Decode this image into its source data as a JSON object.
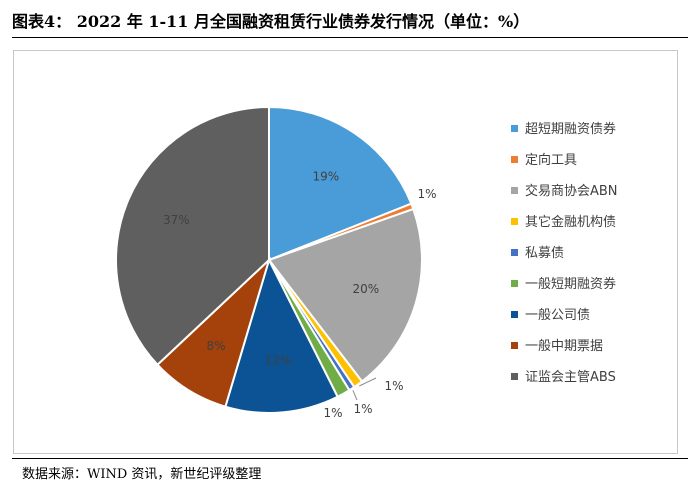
{
  "header": {
    "title": "图表4： 2022 年 1-11 月全国融资租赁行业债券发行情况（单位：%）"
  },
  "footer": {
    "source": "数据来源：WIND 资讯，新世纪评级整理"
  },
  "chart_data": {
    "type": "pie",
    "title": "",
    "unit": "%",
    "legend_position": "right",
    "slices": [
      {
        "name": "超短期融资债券",
        "value": 19,
        "label": "19%",
        "color": "#4A9CD8",
        "label_mode": "inside"
      },
      {
        "name": "定向工具",
        "value": 0.6,
        "label": "1%",
        "color": "#ED7D31",
        "label_mode": "outside"
      },
      {
        "name": "交易商协会ABN",
        "value": 20,
        "label": "20%",
        "color": "#A5A5A5",
        "label_mode": "inside"
      },
      {
        "name": "其它金融机构债",
        "value": 1,
        "label": "1%",
        "color": "#FFC000",
        "label_mode": "leader"
      },
      {
        "name": "私募债",
        "value": 0.6,
        "label": "1%",
        "color": "#4472C4",
        "label_mode": "leader"
      },
      {
        "name": "一般短期融资券",
        "value": 1.4,
        "label": "1%",
        "color": "#70AD47",
        "label_mode": "outside"
      },
      {
        "name": "一般公司债",
        "value": 12,
        "label": "12%",
        "color": "#0B5394",
        "label_mode": "inside"
      },
      {
        "name": "一般中期票据",
        "value": 8.4,
        "label": "8%",
        "color": "#A5410A",
        "label_mode": "inside"
      },
      {
        "name": "证监会主管ABS",
        "value": 37,
        "label": "37%",
        "color": "#5F5F5F",
        "label_mode": "inside"
      }
    ]
  }
}
